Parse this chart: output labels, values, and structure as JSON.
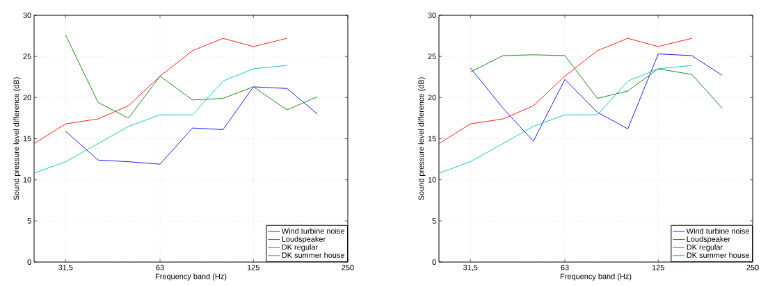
{
  "chart_data": [
    {
      "type": "line",
      "xlabel": "Frequency band (Hz)",
      "ylabel": "Sound pressure level difference (dB)",
      "x": [
        25,
        31.5,
        40,
        50,
        63,
        80,
        100,
        125,
        160,
        200
      ],
      "series": [
        {
          "name": "Wind turbine noise",
          "color": "#0000ff",
          "values": [
            null,
            15.9,
            12.4,
            12.2,
            11.9,
            16.3,
            16.1,
            21.3,
            21.1,
            18.0
          ]
        },
        {
          "name": "Loudspeaker",
          "color": "#008000",
          "values": [
            null,
            27.6,
            19.4,
            17.5,
            22.6,
            19.7,
            19.9,
            21.3,
            18.5,
            20.1
          ]
        },
        {
          "name": "DK regular",
          "color": "#ff0000",
          "values": [
            14.4,
            16.8,
            17.4,
            19.0,
            22.6,
            25.7,
            27.2,
            26.2,
            27.2,
            null
          ]
        },
        {
          "name": "DK summer house",
          "color": "#00bfbf",
          "values": [
            10.8,
            12.2,
            14.4,
            16.5,
            17.9,
            17.9,
            22.0,
            23.5,
            23.9,
            null
          ]
        }
      ],
      "xlim": [
        25,
        250
      ],
      "ylim": [
        0,
        30
      ],
      "xticks": [
        {
          "value": 31.5,
          "label": "31,5"
        },
        63,
        125,
        250
      ],
      "yticks": [
        0,
        5,
        10,
        15,
        20,
        25,
        30
      ],
      "log": "x",
      "grid": true,
      "legend": "bottom right"
    },
    {
      "type": "line",
      "xlabel": "Frequency band (Hz)",
      "ylabel": "Sound pressure level difference (dB)",
      "x": [
        25,
        31.5,
        40,
        50,
        63,
        80,
        100,
        125,
        160,
        200
      ],
      "series": [
        {
          "name": "Wind turbine noise",
          "color": "#0000ff",
          "values": [
            null,
            23.6,
            18.7,
            14.7,
            22.2,
            18.2,
            16.2,
            25.3,
            25.1,
            22.7
          ]
        },
        {
          "name": "Loudspeaker",
          "color": "#008000",
          "values": [
            null,
            23.1,
            25.1,
            25.2,
            25.1,
            19.9,
            20.8,
            23.5,
            22.8,
            18.7
          ]
        },
        {
          "name": "DK regular",
          "color": "#ff0000",
          "values": [
            14.4,
            16.8,
            17.4,
            19.0,
            22.6,
            25.7,
            27.2,
            26.2,
            27.2,
            null
          ]
        },
        {
          "name": "DK summer house",
          "color": "#00bfbf",
          "values": [
            10.8,
            12.2,
            14.4,
            16.5,
            17.9,
            17.9,
            22.0,
            23.5,
            23.9,
            null
          ]
        }
      ],
      "xlim": [
        25,
        250
      ],
      "ylim": [
        0,
        30
      ],
      "xticks": [
        {
          "value": 31.5,
          "label": "31,5"
        },
        63,
        125,
        250
      ],
      "yticks": [
        0,
        5,
        10,
        15,
        20,
        25,
        30
      ],
      "log": "x",
      "grid": true,
      "legend": "bottom right"
    }
  ]
}
